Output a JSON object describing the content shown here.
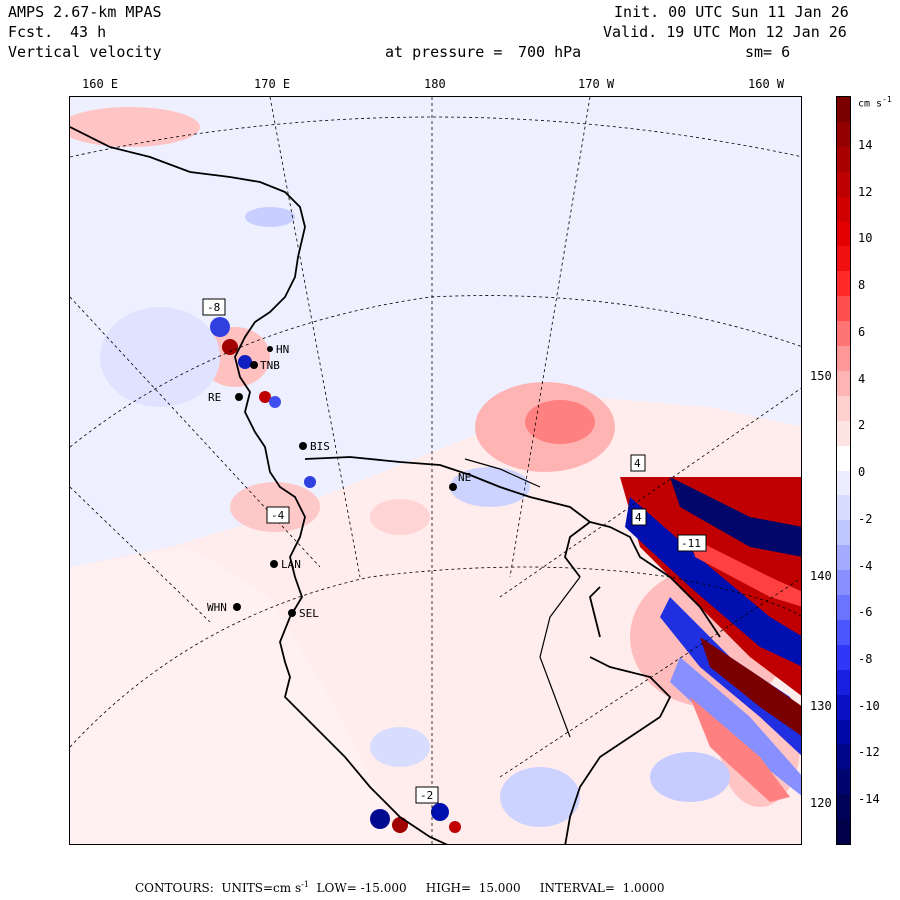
{
  "header": {
    "model": "AMPS 2.67-km MPAS",
    "fcst_label": "Fcst.",
    "fcst_value": "43 h",
    "field": "Vertical velocity",
    "pressure_label": "at pressure =",
    "pressure_value": "700 hPa",
    "init": "Init. 00 UTC Sun 11 Jan 26",
    "valid": "Valid. 19 UTC Mon 12 Jan 26",
    "smoothing": "sm= 6"
  },
  "axes": {
    "top_longitudes": [
      "160 E",
      "170 E",
      "180",
      "170 W",
      "160 W"
    ],
    "right_longitudes": [
      "150 W",
      "140 W",
      "130 W",
      "120 W"
    ]
  },
  "colorbar": {
    "unit": "cm s",
    "unit_sup": "-1",
    "labels": [
      "14",
      "12",
      "10",
      "8",
      "6",
      "4",
      "2",
      "0",
      "-2",
      "-4",
      "-6",
      "-8",
      "-10",
      "-12",
      "-14"
    ],
    "colors": [
      "#7a0000",
      "#930000",
      "#a80000",
      "#bd0000",
      "#d00000",
      "#e30000",
      "#f01010",
      "#ff2a2a",
      "#ff5050",
      "#ff7474",
      "#ff9898",
      "#ffb4b4",
      "#ffd0d0",
      "#ffe4e4",
      "#ffffff",
      "#eceeff",
      "#d8dcff",
      "#c0c6ff",
      "#a4acff",
      "#8890ff",
      "#6a74ff",
      "#4c56ff",
      "#2e38f6",
      "#1820e0",
      "#0a10c4",
      "#0008a6",
      "#00068a",
      "#000470",
      "#000258",
      "#000148"
    ]
  },
  "stations": [
    {
      "id": "TNB",
      "label": "TNB"
    },
    {
      "id": "HN",
      "label": "HN"
    },
    {
      "id": "BIS",
      "label": "BIS"
    },
    {
      "id": "LAN",
      "label": "LAN"
    },
    {
      "id": "WHN",
      "label": "WHN"
    },
    {
      "id": "SEL",
      "label": "SEL"
    },
    {
      "id": "NE",
      "label": "NE"
    },
    {
      "id": "RE",
      "label": "RE"
    }
  ],
  "boxed_labels": [
    {
      "id": "box1",
      "value": "-8"
    },
    {
      "id": "box2",
      "value": "-4"
    },
    {
      "id": "box3",
      "value": "-2"
    },
    {
      "id": "box4",
      "value": "4"
    },
    {
      "id": "box5",
      "value": "4"
    },
    {
      "id": "box6",
      "value": "-11"
    }
  ],
  "footer": {
    "contours_label": "CONTOURS:",
    "units_label": "UNITS=cm s",
    "units_sup": "-1",
    "low_label": "LOW=",
    "low_value": "-15.000",
    "high_label": "HIGH=",
    "high_value": "15.000",
    "interval_label": "INTERVAL=",
    "interval_value": "1.0000"
  }
}
